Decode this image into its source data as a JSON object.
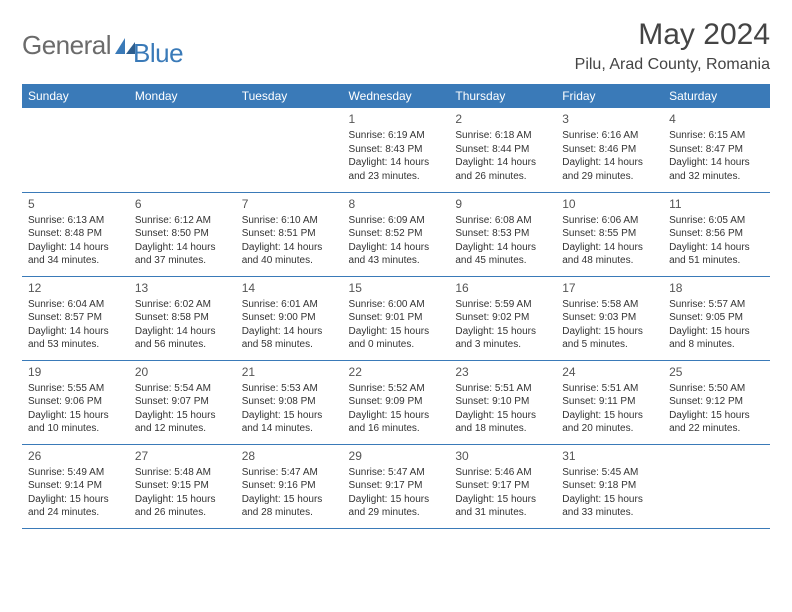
{
  "logo": {
    "general": "General",
    "blue": "Blue"
  },
  "title": "May 2024",
  "location": "Pilu, Arad County, Romania",
  "colors": {
    "header_bg": "#3a7ab8",
    "header_text": "#ffffff",
    "border": "#3a7ab8",
    "text": "#333333",
    "logo_gray": "#6b6b6b",
    "logo_blue": "#3a7ab8"
  },
  "weekdays": [
    "Sunday",
    "Monday",
    "Tuesday",
    "Wednesday",
    "Thursday",
    "Friday",
    "Saturday"
  ],
  "weeks": [
    [
      null,
      null,
      null,
      {
        "n": "1",
        "sr": "6:19 AM",
        "ss": "8:43 PM",
        "dl": "14 hours and 23 minutes."
      },
      {
        "n": "2",
        "sr": "6:18 AM",
        "ss": "8:44 PM",
        "dl": "14 hours and 26 minutes."
      },
      {
        "n": "3",
        "sr": "6:16 AM",
        "ss": "8:46 PM",
        "dl": "14 hours and 29 minutes."
      },
      {
        "n": "4",
        "sr": "6:15 AM",
        "ss": "8:47 PM",
        "dl": "14 hours and 32 minutes."
      }
    ],
    [
      {
        "n": "5",
        "sr": "6:13 AM",
        "ss": "8:48 PM",
        "dl": "14 hours and 34 minutes."
      },
      {
        "n": "6",
        "sr": "6:12 AM",
        "ss": "8:50 PM",
        "dl": "14 hours and 37 minutes."
      },
      {
        "n": "7",
        "sr": "6:10 AM",
        "ss": "8:51 PM",
        "dl": "14 hours and 40 minutes."
      },
      {
        "n": "8",
        "sr": "6:09 AM",
        "ss": "8:52 PM",
        "dl": "14 hours and 43 minutes."
      },
      {
        "n": "9",
        "sr": "6:08 AM",
        "ss": "8:53 PM",
        "dl": "14 hours and 45 minutes."
      },
      {
        "n": "10",
        "sr": "6:06 AM",
        "ss": "8:55 PM",
        "dl": "14 hours and 48 minutes."
      },
      {
        "n": "11",
        "sr": "6:05 AM",
        "ss": "8:56 PM",
        "dl": "14 hours and 51 minutes."
      }
    ],
    [
      {
        "n": "12",
        "sr": "6:04 AM",
        "ss": "8:57 PM",
        "dl": "14 hours and 53 minutes."
      },
      {
        "n": "13",
        "sr": "6:02 AM",
        "ss": "8:58 PM",
        "dl": "14 hours and 56 minutes."
      },
      {
        "n": "14",
        "sr": "6:01 AM",
        "ss": "9:00 PM",
        "dl": "14 hours and 58 minutes."
      },
      {
        "n": "15",
        "sr": "6:00 AM",
        "ss": "9:01 PM",
        "dl": "15 hours and 0 minutes."
      },
      {
        "n": "16",
        "sr": "5:59 AM",
        "ss": "9:02 PM",
        "dl": "15 hours and 3 minutes."
      },
      {
        "n": "17",
        "sr": "5:58 AM",
        "ss": "9:03 PM",
        "dl": "15 hours and 5 minutes."
      },
      {
        "n": "18",
        "sr": "5:57 AM",
        "ss": "9:05 PM",
        "dl": "15 hours and 8 minutes."
      }
    ],
    [
      {
        "n": "19",
        "sr": "5:55 AM",
        "ss": "9:06 PM",
        "dl": "15 hours and 10 minutes."
      },
      {
        "n": "20",
        "sr": "5:54 AM",
        "ss": "9:07 PM",
        "dl": "15 hours and 12 minutes."
      },
      {
        "n": "21",
        "sr": "5:53 AM",
        "ss": "9:08 PM",
        "dl": "15 hours and 14 minutes."
      },
      {
        "n": "22",
        "sr": "5:52 AM",
        "ss": "9:09 PM",
        "dl": "15 hours and 16 minutes."
      },
      {
        "n": "23",
        "sr": "5:51 AM",
        "ss": "9:10 PM",
        "dl": "15 hours and 18 minutes."
      },
      {
        "n": "24",
        "sr": "5:51 AM",
        "ss": "9:11 PM",
        "dl": "15 hours and 20 minutes."
      },
      {
        "n": "25",
        "sr": "5:50 AM",
        "ss": "9:12 PM",
        "dl": "15 hours and 22 minutes."
      }
    ],
    [
      {
        "n": "26",
        "sr": "5:49 AM",
        "ss": "9:14 PM",
        "dl": "15 hours and 24 minutes."
      },
      {
        "n": "27",
        "sr": "5:48 AM",
        "ss": "9:15 PM",
        "dl": "15 hours and 26 minutes."
      },
      {
        "n": "28",
        "sr": "5:47 AM",
        "ss": "9:16 PM",
        "dl": "15 hours and 28 minutes."
      },
      {
        "n": "29",
        "sr": "5:47 AM",
        "ss": "9:17 PM",
        "dl": "15 hours and 29 minutes."
      },
      {
        "n": "30",
        "sr": "5:46 AM",
        "ss": "9:17 PM",
        "dl": "15 hours and 31 minutes."
      },
      {
        "n": "31",
        "sr": "5:45 AM",
        "ss": "9:18 PM",
        "dl": "15 hours and 33 minutes."
      },
      null
    ]
  ],
  "labels": {
    "sunrise": "Sunrise:",
    "sunset": "Sunset:",
    "daylight": "Daylight:"
  }
}
